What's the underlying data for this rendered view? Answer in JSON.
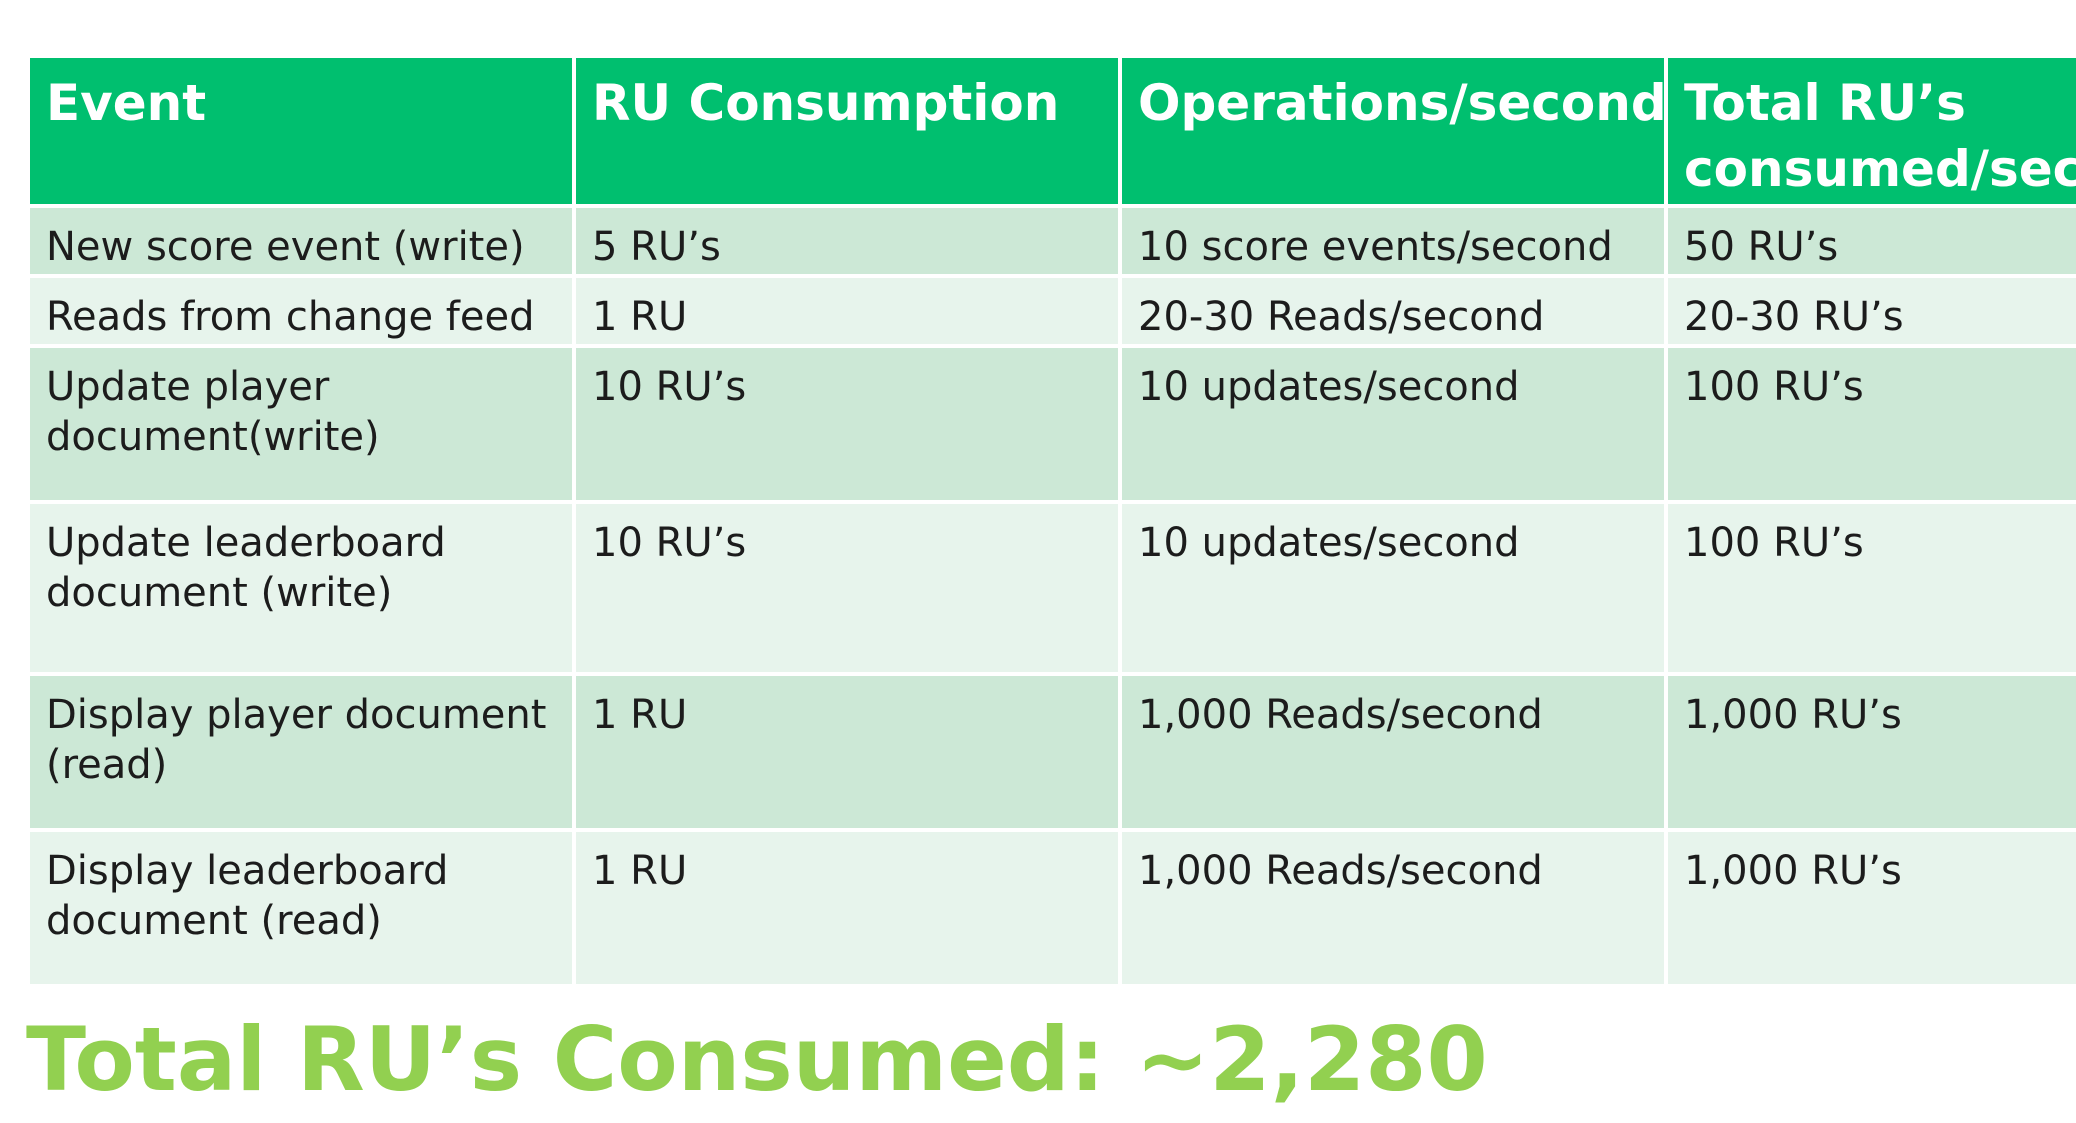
{
  "table": {
    "headers": [
      "Event",
      "RU Consumption",
      "Operations/second",
      "Total RU’s consumed/second"
    ],
    "rows": [
      [
        "New score event (write)",
        "5 RU’s",
        "10 score events/second",
        "50 RU’s"
      ],
      [
        "Reads from change feed",
        "1 RU",
        "20-30 Reads/second",
        "20-30 RU’s"
      ],
      [
        "Update player document(write)",
        "10 RU’s",
        "10 updates/second",
        "100 RU’s"
      ],
      [
        "Update leaderboard document (write)",
        "10 RU’s",
        "10 updates/second",
        "100 RU’s"
      ],
      [
        "Display player document (read)",
        "1 RU",
        "1,000 Reads/second",
        "1,000 RU’s"
      ],
      [
        "Display leaderboard document (read)",
        "1 RU",
        "1,000 Reads/second",
        "1,000 RU’s"
      ]
    ]
  },
  "total": "Total RU’s Consumed: ~2,280",
  "colors": {
    "header_bg": "#00bf6f",
    "row_dark": "#cce8d6",
    "row_light": "#e7f4ec",
    "total_text": "#92d050"
  }
}
